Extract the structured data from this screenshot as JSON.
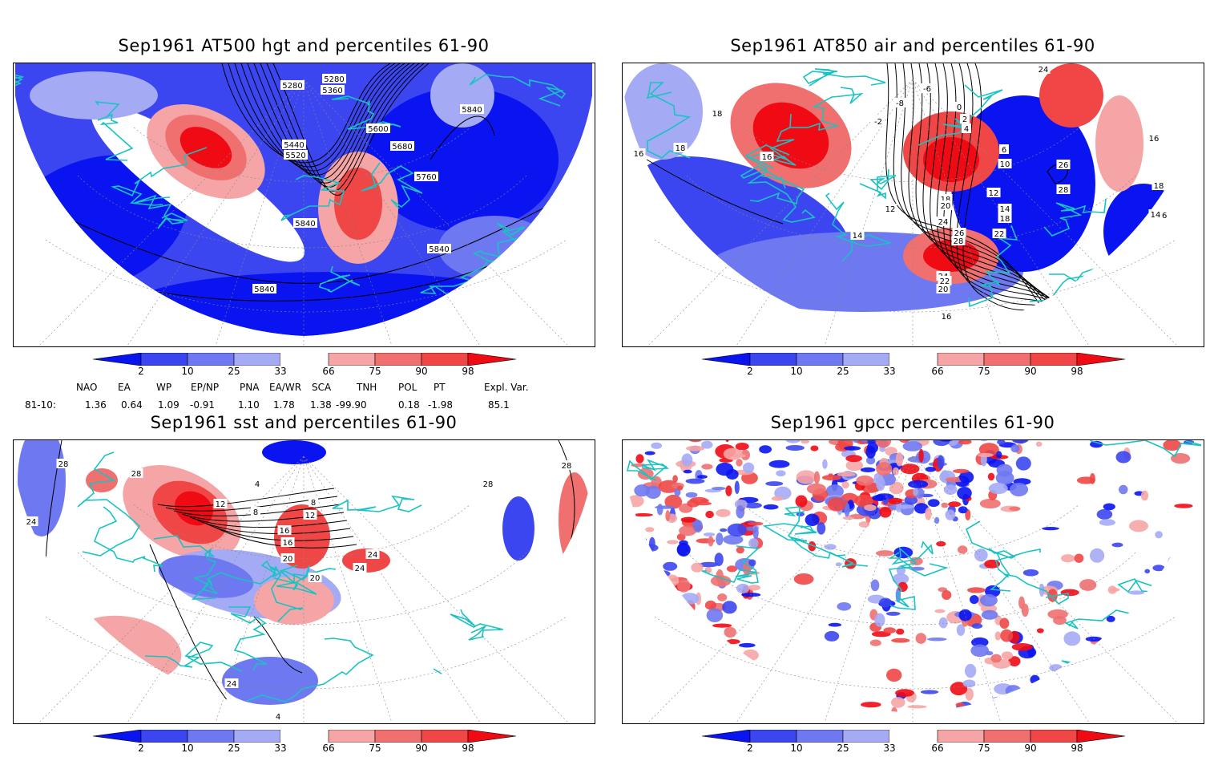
{
  "panels": [
    {
      "id": "p1",
      "title": "Sep1961 AT500 hgt and percentiles 61-90",
      "contour_labels": [
        "5280",
        "5280",
        "5360",
        "5600",
        "5440",
        "5520",
        "5680",
        "5760",
        "5840",
        "5840",
        "5840",
        "5840"
      ]
    },
    {
      "id": "p2",
      "title": "Sep1961 AT850 air and percentiles 61-90",
      "contour_labels": [
        "24",
        "18",
        "16",
        "18",
        "16",
        "12",
        "14",
        "-6",
        "-8",
        "-2",
        "2",
        "4",
        "0",
        "6",
        "10",
        "18",
        "20",
        "24",
        "26",
        "28",
        "24",
        "22",
        "20",
        "12",
        "14",
        "18",
        "22",
        "26",
        "28",
        "16",
        "18",
        "16",
        "14",
        "16"
      ]
    },
    {
      "id": "p3",
      "title": "Sep1961 sst and percentiles 61-90",
      "contour_labels": [
        "28",
        "24",
        "28",
        "12",
        "8",
        "4",
        "8",
        "12",
        "16",
        "16",
        "20",
        "24",
        "24",
        "20",
        "28",
        "28",
        "24",
        "4"
      ]
    },
    {
      "id": "p4",
      "title": "Sep1961 gpcc percentiles 61-90",
      "contour_labels": []
    }
  ],
  "colorbar": {
    "ticks": [
      "2",
      "10",
      "25",
      "33",
      "66",
      "75",
      "90",
      "98"
    ],
    "colors": {
      "dark_blue": "#0a14f0",
      "blue": "#3c46f0",
      "mid_blue": "#6e78f0",
      "light_blue": "#a5aaf5",
      "light_red": "#f5a5a5",
      "mid_red": "#f07070",
      "red": "#f04646",
      "dark_red": "#f00a14",
      "coast": "#19c3c3"
    }
  },
  "teleconnections": {
    "headers": [
      "NAO",
      "EA",
      "WP",
      "EP/NP",
      "PNA",
      "EA/WR",
      "SCA",
      "TNH",
      "POL",
      "PT",
      "Expl. Var."
    ],
    "row_label": "81-10:",
    "values": [
      "1.36",
      "0.64",
      "1.09",
      "-0.91",
      "1.10",
      "1.78",
      "1.38",
      "-99.90",
      "0.18",
      "-1.98",
      "85.1"
    ]
  }
}
